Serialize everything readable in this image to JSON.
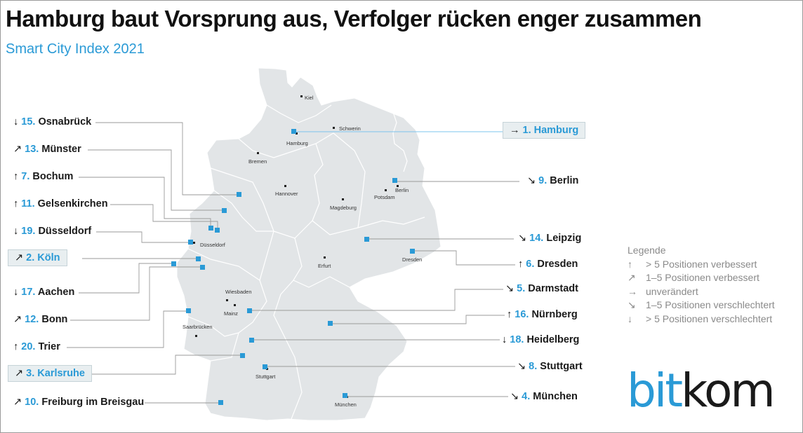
{
  "title": "Hamburg baut Vorsprung aus, Verfolger rücken enger zusammen",
  "subtitle": "Smart City Index 2021",
  "colors": {
    "accent": "#2a9ad6",
    "map_fill": "#e2e5e7",
    "highlight_bg": "#e8eef0"
  },
  "map_cities": [
    "Kiel",
    "Schwerin",
    "Hamburg",
    "Bremen",
    "Berlin",
    "Potsdam",
    "Hannover",
    "Magdeburg",
    "Düsseldorf",
    "Dresden",
    "Erfurt",
    "Wiesbaden",
    "Mainz",
    "Saarbrücken",
    "Stuttgart",
    "München"
  ],
  "rankings_left": [
    {
      "arrow": "↓",
      "rank": "15.",
      "city": "Osnabrück"
    },
    {
      "arrow": "↗",
      "rank": "13.",
      "city": "Münster"
    },
    {
      "arrow": "↑",
      "rank": "7.",
      "city": "Bochum"
    },
    {
      "arrow": "↑",
      "rank": "11.",
      "city": "Gelsenkirchen"
    },
    {
      "arrow": "↓",
      "rank": "19.",
      "city": "Düsseldorf"
    },
    {
      "arrow": "↗",
      "rank": "2.",
      "city": "Köln"
    },
    {
      "arrow": "↓",
      "rank": "17.",
      "city": "Aachen"
    },
    {
      "arrow": "↗",
      "rank": "12.",
      "city": "Bonn"
    },
    {
      "arrow": "↑",
      "rank": "20.",
      "city": "Trier"
    },
    {
      "arrow": "↗",
      "rank": "3.",
      "city": "Karlsruhe"
    },
    {
      "arrow": "↗",
      "rank": "10.",
      "city": "Freiburg im Breisgau"
    }
  ],
  "rankings_right": [
    {
      "arrow": "→",
      "rank": "1.",
      "city": "Hamburg"
    },
    {
      "arrow": "↘",
      "rank": "9.",
      "city": "Berlin"
    },
    {
      "arrow": "↘",
      "rank": "14.",
      "city": "Leipzig"
    },
    {
      "arrow": "↑",
      "rank": "6.",
      "city": "Dresden"
    },
    {
      "arrow": "↘",
      "rank": "5.",
      "city": "Darmstadt"
    },
    {
      "arrow": "↑",
      "rank": "16.",
      "city": "Nürnberg"
    },
    {
      "arrow": "↓",
      "rank": "18.",
      "city": "Heidelberg"
    },
    {
      "arrow": "↘",
      "rank": "8.",
      "city": "Stuttgart"
    },
    {
      "arrow": "↘",
      "rank": "4.",
      "city": "München"
    }
  ],
  "legend": {
    "title": "Legende",
    "items": [
      {
        "arrow": "↑",
        "text": "> 5 Positionen verbessert"
      },
      {
        "arrow": "↗",
        "text": "1–5 Positionen verbessert"
      },
      {
        "arrow": "→",
        "text": "unverändert"
      },
      {
        "arrow": "↘",
        "text": "1–5 Positionen verschlechtert"
      },
      {
        "arrow": "↓",
        "text": "> 5 Positionen verschlechtert"
      }
    ]
  },
  "logo": {
    "part1": "bit",
    "part2": "kom"
  }
}
